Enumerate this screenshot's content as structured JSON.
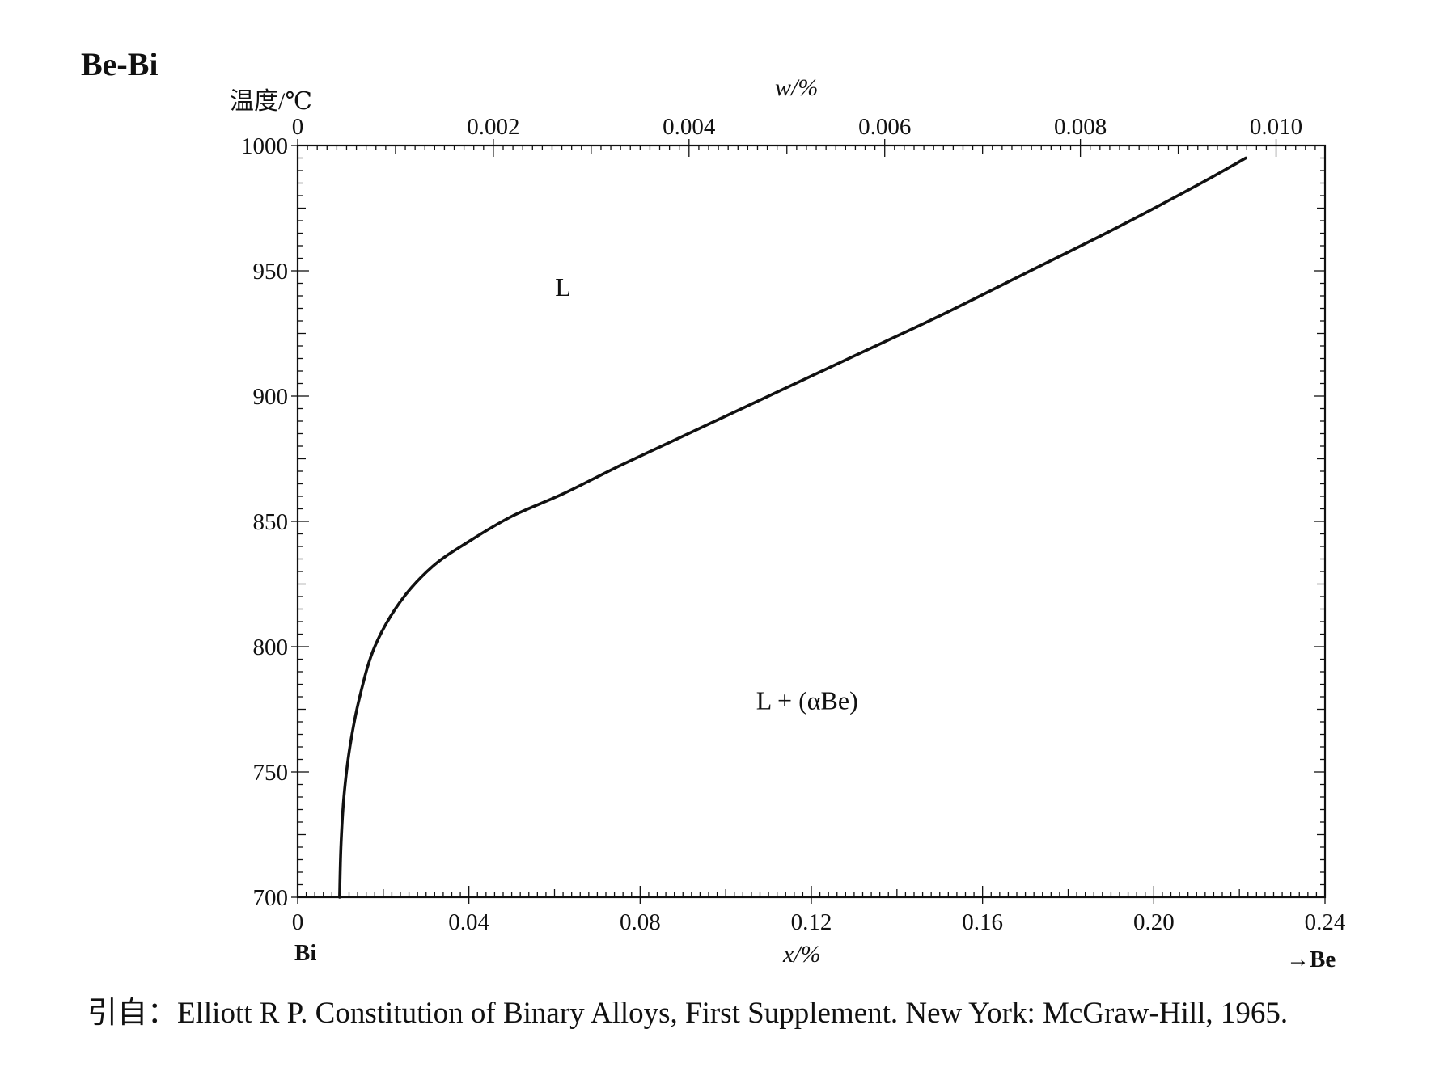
{
  "title": "Be-Bi",
  "source": "引自：Elliott R P. Constitution of Binary Alloys, First Supplement. New York: McGraw-Hill, 1965.",
  "chart_data": {
    "type": "line",
    "ylabel": "温度/℃",
    "xlabel": "x/%",
    "top_xlabel": "w/%",
    "left_element": "Bi",
    "right_element": "→Be",
    "xlim": [
      0,
      0.24
    ],
    "ylim": [
      700,
      1000
    ],
    "x_ticks": [
      "0",
      "0.04",
      "0.08",
      "0.12",
      "0.16",
      "0.20",
      "0.24"
    ],
    "y_ticks": [
      "700",
      "750",
      "800",
      "850",
      "900",
      "950",
      "1000"
    ],
    "top_x_ticks": [
      "0",
      "0.002",
      "0.004",
      "0.006",
      "0.008",
      "0.010"
    ],
    "top_xlim": [
      0,
      0.0105
    ],
    "regions": [
      {
        "label": "L",
        "x": 0.062,
        "y": 940
      },
      {
        "label": "L + (αBe)",
        "x": 0.119,
        "y": 775
      }
    ],
    "series": [
      {
        "points": [
          [
            0.0098,
            700
          ],
          [
            0.0101,
            720
          ],
          [
            0.0108,
            740
          ],
          [
            0.0122,
            760
          ],
          [
            0.0145,
            780
          ],
          [
            0.018,
            800
          ],
          [
            0.024,
            818
          ],
          [
            0.0315,
            832
          ],
          [
            0.04,
            842
          ],
          [
            0.05,
            852
          ],
          [
            0.062,
            861
          ],
          [
            0.075,
            872
          ],
          [
            0.09,
            884
          ],
          [
            0.11,
            900
          ],
          [
            0.13,
            916
          ],
          [
            0.15,
            932
          ],
          [
            0.17,
            949
          ],
          [
            0.19,
            966
          ],
          [
            0.21,
            984
          ],
          [
            0.2215,
            995
          ]
        ]
      }
    ]
  }
}
